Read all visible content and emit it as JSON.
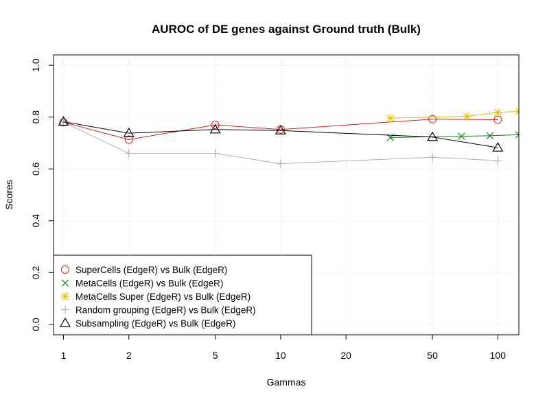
{
  "chart_data": {
    "type": "line",
    "title": "AUROC of DE genes against Ground truth (Bulk)",
    "xlabel": "Gammas",
    "ylabel": "Scores",
    "x_scale": "log",
    "xlim": [
      0.9,
      125
    ],
    "ylim": [
      -0.04,
      1.04
    ],
    "x_ticks": [
      1,
      2,
      5,
      10,
      20,
      50,
      100
    ],
    "x_tick_labels": [
      "1",
      "2",
      "5",
      "10",
      "20",
      "50",
      "100"
    ],
    "y_ticks": [
      0.0,
      0.2,
      0.4,
      0.6,
      0.8,
      1.0
    ],
    "y_tick_labels": [
      "0.0",
      "0.2",
      "0.4",
      "0.6",
      "0.8",
      "1.0"
    ],
    "grid": true,
    "legend_position": "bottom-left",
    "series": [
      {
        "name": "SuperCells (EdgeR) vs Bulk (EdgeR)",
        "color": "#cc2222",
        "marker": "circle",
        "x": [
          1,
          2,
          5,
          10,
          50,
          100
        ],
        "y": [
          0.78,
          0.713,
          0.77,
          0.752,
          0.792,
          0.79
        ]
      },
      {
        "name": "MetaCells (EdgeR) vs Bulk (EdgeR)",
        "color": "#1a7a1a",
        "marker": "x",
        "x": [
          32,
          68,
          92,
          125
        ],
        "y": [
          0.721,
          0.726,
          0.728,
          0.732
        ]
      },
      {
        "name": "MetaCells Super (EdgeR) vs Bulk (EdgeR)",
        "color": "#e8c000",
        "marker": "asterisk",
        "x": [
          32,
          72,
          100,
          125
        ],
        "y": [
          0.796,
          0.803,
          0.818,
          0.822
        ]
      },
      {
        "name": "Random grouping (EdgeR) vs Bulk (EdgeR)",
        "color": "#b0b0b0",
        "marker": "plus",
        "x": [
          1,
          2,
          5,
          10,
          50,
          100
        ],
        "y": [
          0.78,
          0.66,
          0.66,
          0.62,
          0.645,
          0.632
        ]
      },
      {
        "name": "Subsampling (EdgeR) vs Bulk (EdgeR)",
        "color": "#000000",
        "marker": "triangle",
        "x": [
          1,
          2,
          5,
          10,
          50,
          100
        ],
        "y": [
          0.782,
          0.738,
          0.752,
          0.748,
          0.723,
          0.682
        ]
      }
    ]
  }
}
